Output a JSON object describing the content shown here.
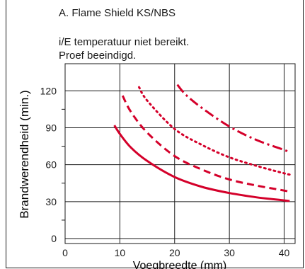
{
  "chart_data": {
    "type": "line",
    "title": "A. Flame Shield KS/NBS",
    "annotation": [
      "i/E temperatuur niet bereikt.",
      "Proef beeindigd."
    ],
    "xlabel": "Voegbreedte (mm)",
    "ylabel": "Brandwerendheid (min.)",
    "xlim": [
      0,
      42
    ],
    "ylim": [
      -4,
      142
    ],
    "x_ticks": [
      0,
      10,
      20,
      30,
      40
    ],
    "y_ticks": [
      0,
      30,
      60,
      90,
      120
    ],
    "y_minor_ticks": [
      15,
      45,
      75,
      105
    ],
    "grid": "major",
    "line_color": "#d4002a",
    "series": [
      {
        "style": "solid",
        "x": [
          9,
          10,
          12,
          15,
          20,
          25,
          30,
          35,
          40,
          41
        ],
        "y": [
          92,
          85,
          74,
          63,
          50,
          42,
          37,
          33.5,
          31,
          30.5
        ]
      },
      {
        "style": "dashed",
        "x": [
          10.5,
          12,
          15,
          20,
          25,
          30,
          35,
          40,
          41
        ],
        "y": [
          116,
          103,
          86,
          67,
          56,
          48,
          43,
          39,
          38
        ]
      },
      {
        "style": "dotted",
        "x": [
          13.5,
          15,
          20,
          25,
          30,
          35,
          40,
          41
        ],
        "y": [
          123,
          112,
          89,
          76,
          66,
          59,
          53,
          52
        ]
      },
      {
        "style": "dash-dot",
        "x": [
          20.5,
          22,
          25,
          30,
          35,
          40,
          41
        ],
        "y": [
          125,
          117,
          106,
          91,
          80,
          72,
          70
        ]
      }
    ]
  }
}
